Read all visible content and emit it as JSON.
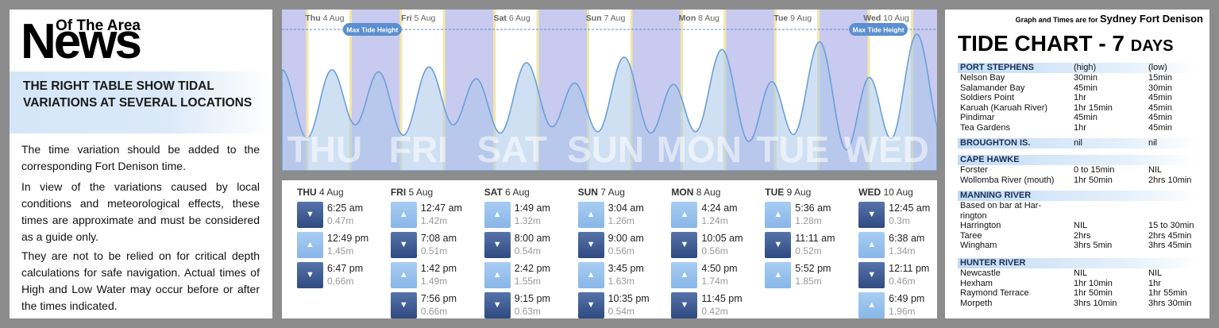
{
  "left": {
    "brand_small": "Of The Area",
    "brand_big": "News",
    "headline": "THE RIGHT TABLE SHOW TIDAL VARIATIONS AT SEVERAL LOCATIONS",
    "para1": "The time variation should be added to the corresponding Fort Denison time.",
    "para2": "In view of the variations caused by local conditions and meteorological effects, these times are approximate and must be considered as a guide only.",
    "para3": "They are not to be relied on for critical depth calculations for safe navigation. Actual times of High and Low Water may occur before or after the times indicated."
  },
  "chart": {
    "max_label": "Max Tide Height",
    "days": [
      {
        "dow": "Thu",
        "date": "4 Aug",
        "big": "THU"
      },
      {
        "dow": "Fri",
        "date": "5 Aug",
        "big": "FRI"
      },
      {
        "dow": "Sat",
        "date": "6 Aug",
        "big": "SAT"
      },
      {
        "dow": "Sun",
        "date": "7 Aug",
        "big": "SUN"
      },
      {
        "dow": "Mon",
        "date": "8 Aug",
        "big": "MON"
      },
      {
        "dow": "Tue",
        "date": "9 Aug",
        "big": "TUE"
      },
      {
        "dow": "Wed",
        "date": "10 Aug",
        "big": "WED"
      }
    ],
    "colors": {
      "night": "#c8caef",
      "day": "#ffffff",
      "sunrise": "#f2e8a8",
      "curve": "#6a9fd8",
      "fill": "#a9c6ea",
      "pill": "#5b8fd0"
    }
  },
  "table": {
    "up_icon": "▲",
    "down_icon": "▼",
    "days": [
      {
        "dow": "THU",
        "date": "4 Aug",
        "entries": [
          {
            "type": "low",
            "time": "6:25 am",
            "height": "0.47m"
          },
          {
            "type": "high",
            "time": "12:49 pm",
            "height": "1.45m"
          },
          {
            "type": "low",
            "time": "6:47 pm",
            "height": "0.66m"
          }
        ]
      },
      {
        "dow": "FRI",
        "date": "5 Aug",
        "entries": [
          {
            "type": "high",
            "time": "12:47 am",
            "height": "1.42m"
          },
          {
            "type": "low",
            "time": "7:08 am",
            "height": "0.51m"
          },
          {
            "type": "high",
            "time": "1:42 pm",
            "height": "1.49m"
          },
          {
            "type": "low",
            "time": "7:56 pm",
            "height": "0.66m"
          }
        ]
      },
      {
        "dow": "SAT",
        "date": "6 Aug",
        "entries": [
          {
            "type": "high",
            "time": "1:49 am",
            "height": "1.32m"
          },
          {
            "type": "low",
            "time": "8:00 am",
            "height": "0.54m"
          },
          {
            "type": "high",
            "time": "2:42 pm",
            "height": "1.55m"
          },
          {
            "type": "low",
            "time": "9:15 pm",
            "height": "0.63m"
          }
        ]
      },
      {
        "dow": "SUN",
        "date": "7 Aug",
        "entries": [
          {
            "type": "high",
            "time": "3:04 am",
            "height": "1.26m"
          },
          {
            "type": "low",
            "time": "9:00 am",
            "height": "0.56m"
          },
          {
            "type": "high",
            "time": "3:45 pm",
            "height": "1.63m"
          },
          {
            "type": "low",
            "time": "10:35 pm",
            "height": "0.54m"
          }
        ]
      },
      {
        "dow": "MON",
        "date": "8 Aug",
        "entries": [
          {
            "type": "high",
            "time": "4:24 am",
            "height": "1.24m"
          },
          {
            "type": "low",
            "time": "10:05 am",
            "height": "0.56m"
          },
          {
            "type": "high",
            "time": "4:50 pm",
            "height": "1.74m"
          },
          {
            "type": "low",
            "time": "11:45 pm",
            "height": "0.42m"
          }
        ]
      },
      {
        "dow": "TUE",
        "date": "9 Aug",
        "entries": [
          {
            "type": "high",
            "time": "5:36 am",
            "height": "1.28m"
          },
          {
            "type": "low",
            "time": "11:11 am",
            "height": "0.52m"
          },
          {
            "type": "high",
            "time": "5:52 pm",
            "height": "1.85m"
          }
        ]
      },
      {
        "dow": "WED",
        "date": "10 Aug",
        "entries": [
          {
            "type": "low",
            "time": "12:45 am",
            "height": "0.3m"
          },
          {
            "type": "high",
            "time": "6:38 am",
            "height": "1.34m"
          },
          {
            "type": "low",
            "time": "12:11 pm",
            "height": "0.46m"
          },
          {
            "type": "high",
            "time": "6:49 pm",
            "height": "1.96m"
          }
        ]
      }
    ]
  },
  "right": {
    "graph_note": "Graph and Times are for",
    "location": "Sydney Fort Denison",
    "title": "TIDE CHART",
    "title_sep": " - 7 ",
    "title_days": "DAYS",
    "sections": [
      {
        "name": "PORT STEPHENS",
        "h": "(high)",
        "l": "(low)",
        "rows": [
          [
            "Nelson Bay",
            "30min",
            "15min"
          ],
          [
            "Salamander Bay",
            "45min",
            "30min"
          ],
          [
            "Soldiers Point",
            "1hr",
            "45min"
          ],
          [
            "Karuah (Karuah River)",
            "1hr 15min",
            "45min"
          ],
          [
            "Pindimar",
            "45min",
            "45min"
          ],
          [
            "Tea Gardens",
            "1hr",
            "45min"
          ]
        ]
      },
      {
        "name": "BROUGHTON IS.",
        "h": "nil",
        "l": "nil",
        "rows": []
      },
      {
        "name": "CAPE HAWKE",
        "h": "",
        "l": "",
        "rows": [
          [
            "Forster",
            "0 to 15min",
            "NIL"
          ],
          [
            "Wollomba River (mouth)",
            "1hr 50min",
            "2hrs 10min"
          ]
        ]
      },
      {
        "name": "MANNING RIVER",
        "h": "",
        "l": "",
        "rows": [
          [
            "Based on bar at Har-",
            "",
            ""
          ],
          [
            "rington",
            "",
            ""
          ],
          [
            "Harrington",
            "NIL",
            "15 to 30min"
          ],
          [
            "Taree",
            "2hrs",
            "2hrs 45min"
          ],
          [
            "Wingham",
            "3hrs 5min",
            "3hrs 45min"
          ]
        ]
      },
      {
        "name": "HUNTER RIVER",
        "h": "",
        "l": "",
        "rows": [
          [
            "Newcastle",
            "NIL",
            "NIL"
          ],
          [
            "Hexham",
            "1hr 10min",
            "1hr"
          ],
          [
            "Raymond Terrace",
            "1hr 50min",
            "1hr 55min"
          ],
          [
            "Morpeth",
            "3hrs 10min",
            "3hrs 30min"
          ]
        ]
      }
    ]
  }
}
